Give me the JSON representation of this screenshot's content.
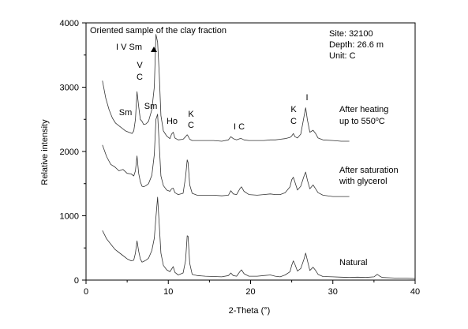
{
  "chart_data": {
    "type": "line",
    "title": "",
    "xlabel": "2-Theta (°)",
    "ylabel": "Relative intensity",
    "xlim": [
      0,
      40
    ],
    "ylim": [
      0,
      4000
    ],
    "x_ticks": [
      0,
      10,
      20,
      30,
      40
    ],
    "y_ticks": [
      0,
      1000,
      2000,
      3000,
      4000
    ],
    "grid": false,
    "legend": "none",
    "colors": {
      "line": "#333333",
      "axis": "#000000",
      "text": "#000000"
    },
    "series": [
      {
        "name": "Natural",
        "x": [
          2.0,
          2.5,
          3.0,
          3.5,
          4.0,
          4.5,
          5.0,
          5.5,
          5.8,
          6.0,
          6.2,
          6.4,
          6.6,
          6.8,
          7.0,
          7.3,
          7.6,
          8.0,
          8.3,
          8.5,
          8.7,
          8.9,
          9.1,
          9.4,
          9.8,
          10.2,
          10.4,
          10.6,
          10.8,
          11.2,
          11.8,
          12.1,
          12.3,
          12.4,
          12.6,
          12.9,
          13.5,
          14.5,
          15.5,
          16.5,
          17.3,
          17.6,
          17.9,
          18.3,
          18.7,
          18.9,
          19.2,
          19.8,
          20.8,
          21.6,
          22.4,
          23.0,
          23.6,
          24.2,
          24.8,
          25.0,
          25.2,
          25.4,
          25.7,
          26.1,
          26.5,
          26.7,
          26.9,
          27.2,
          27.6,
          27.9,
          28.2,
          28.8,
          30.0,
          31.0,
          32.0,
          33.0,
          34.0,
          35.0,
          35.4,
          35.7,
          36.0,
          37.0,
          38.0,
          39.0,
          40.0
        ],
        "y": [
          770,
          640,
          560,
          480,
          430,
          380,
          330,
          300,
          310,
          420,
          610,
          450,
          330,
          280,
          290,
          310,
          340,
          460,
          650,
          980,
          1290,
          860,
          420,
          230,
          160,
          130,
          170,
          210,
          120,
          80,
          110,
          300,
          690,
          680,
          260,
          90,
          70,
          60,
          55,
          50,
          70,
          110,
          70,
          60,
          130,
          160,
          100,
          60,
          60,
          70,
          80,
          60,
          50,
          80,
          130,
          230,
          300,
          240,
          140,
          180,
          330,
          420,
          310,
          150,
          200,
          150,
          90,
          55,
          50,
          45,
          40,
          45,
          40,
          50,
          90,
          60,
          40,
          35,
          30,
          30,
          25
        ]
      },
      {
        "name": "After saturation with glycerol",
        "x": [
          2.0,
          2.5,
          3.0,
          3.5,
          4.0,
          4.5,
          5.0,
          5.5,
          5.8,
          6.0,
          6.2,
          6.4,
          6.6,
          6.8,
          7.0,
          7.3,
          7.6,
          8.0,
          8.3,
          8.5,
          8.7,
          8.9,
          9.1,
          9.4,
          9.8,
          10.2,
          10.4,
          10.6,
          10.8,
          11.2,
          11.8,
          12.1,
          12.3,
          12.4,
          12.6,
          12.9,
          13.5,
          14.5,
          15.5,
          16.5,
          17.3,
          17.6,
          17.9,
          18.3,
          18.7,
          18.9,
          19.2,
          19.8,
          20.8,
          21.6,
          22.4,
          23.0,
          23.6,
          24.2,
          24.8,
          25.0,
          25.2,
          25.4,
          25.7,
          26.1,
          26.5,
          26.7,
          26.9,
          27.2,
          27.6,
          27.9,
          28.2,
          28.8,
          30.0,
          31.0,
          32.0
        ],
        "y": [
          2100,
          1920,
          1800,
          1760,
          1700,
          1720,
          1660,
          1650,
          1620,
          1700,
          1930,
          1660,
          1530,
          1460,
          1450,
          1470,
          1500,
          1630,
          1950,
          2500,
          2580,
          2100,
          1620,
          1470,
          1400,
          1380,
          1420,
          1430,
          1360,
          1330,
          1350,
          1600,
          1870,
          1830,
          1480,
          1350,
          1320,
          1320,
          1320,
          1310,
          1320,
          1390,
          1340,
          1330,
          1420,
          1450,
          1380,
          1330,
          1320,
          1330,
          1340,
          1330,
          1330,
          1360,
          1450,
          1560,
          1600,
          1520,
          1400,
          1460,
          1620,
          1680,
          1560,
          1420,
          1480,
          1420,
          1360,
          1320,
          1300,
          1300,
          1300
        ]
      },
      {
        "name": "After heating up to 550°C",
        "x": [
          2.0,
          2.4,
          2.8,
          3.2,
          3.6,
          4.0,
          4.4,
          4.8,
          5.2,
          5.6,
          5.8,
          6.0,
          6.2,
          6.4,
          6.6,
          6.8,
          7.0,
          7.3,
          7.6,
          8.0,
          8.3,
          8.5,
          8.7,
          8.9,
          9.1,
          9.4,
          9.8,
          10.2,
          10.4,
          10.6,
          10.8,
          11.2,
          11.8,
          12.1,
          12.3,
          12.4,
          12.6,
          12.9,
          13.5,
          14.5,
          15.5,
          16.5,
          17.3,
          17.6,
          17.9,
          18.3,
          18.7,
          18.9,
          19.2,
          19.8,
          20.8,
          21.6,
          22.4,
          23.0,
          23.6,
          24.2,
          24.8,
          25.0,
          25.2,
          25.4,
          25.7,
          26.1,
          26.5,
          26.7,
          26.9,
          27.2,
          27.6,
          27.9,
          28.2,
          28.8,
          30.0,
          31.0,
          32.0
        ],
        "y": [
          3100,
          2830,
          2650,
          2520,
          2440,
          2400,
          2360,
          2320,
          2300,
          2280,
          2320,
          2500,
          2930,
          2700,
          2500,
          2470,
          2420,
          2430,
          2470,
          2650,
          3000,
          3820,
          3700,
          3200,
          2560,
          2320,
          2240,
          2200,
          2270,
          2300,
          2210,
          2180,
          2190,
          2230,
          2260,
          2240,
          2190,
          2170,
          2170,
          2170,
          2170,
          2160,
          2180,
          2230,
          2200,
          2180,
          2200,
          2200,
          2180,
          2170,
          2170,
          2170,
          2180,
          2180,
          2190,
          2200,
          2220,
          2240,
          2280,
          2230,
          2210,
          2270,
          2550,
          2680,
          2500,
          2300,
          2330,
          2280,
          2210,
          2180,
          2170,
          2160,
          2160
        ]
      }
    ],
    "annotations": {
      "sample_title": "Oriented sample of the clay fraction",
      "site": "Site: 32100",
      "depth": "Depth: 26.6 m",
      "unit": "Unit: C",
      "curve_natural": "Natural",
      "curve_glycerol_line1": "After saturation",
      "curve_glycerol_line2": "with glycerol",
      "curve_heated_line1": "After heating",
      "curve_heated_line2_main": "up to 550",
      "curve_heated_line2_sup": "o",
      "curve_heated_line2_end": "C",
      "peak_ivsm": "I V Sm",
      "peak_v": "V",
      "peak_c1": "C",
      "peak_sm1": "Sm",
      "peak_sm2": "Sm",
      "peak_ho": "Ho",
      "peak_k1": "K",
      "peak_c2": "C",
      "peak_ic": "I C",
      "peak_k2": "K",
      "peak_c3": "C",
      "peak_i": "I"
    }
  }
}
